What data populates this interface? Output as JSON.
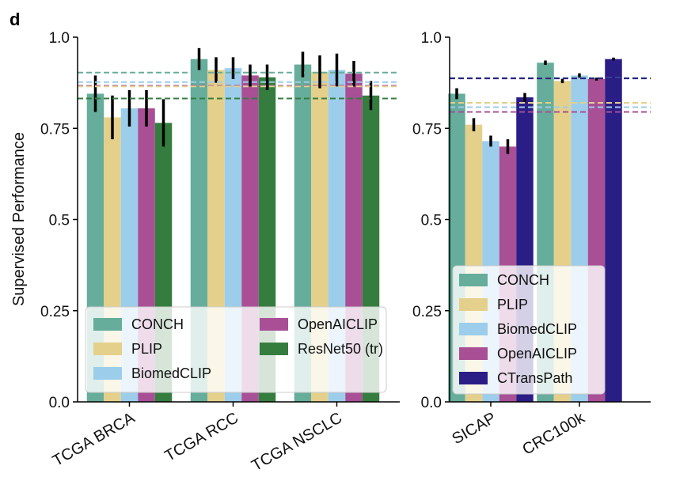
{
  "figure": {
    "panel_letter": "d",
    "ylabel": "Supervised Performance"
  },
  "colors": {
    "CONCH": "#66ad9b",
    "PLIP": "#e4d08a",
    "BiomedCLIP": "#9ccdeb",
    "OpenAICLIP": "#a84f96",
    "ResNet50 (tr)": "#357d3f",
    "CTransPath": "#2b1d86"
  },
  "chart_data": [
    {
      "type": "bar",
      "categories": [
        "TCGA BRCA",
        "TCGA RCC",
        "TCGA NSCLC"
      ],
      "ylim": [
        0.0,
        1.0
      ],
      "yticks": [
        "0.0",
        "0.25",
        "0.5",
        "0.75",
        "1.0"
      ],
      "ylabel": "Supervised Performance",
      "grid": false,
      "legend": {
        "placement": "bottom",
        "columns": 2,
        "order": [
          "CONCH",
          "OpenAICLIP",
          "PLIP",
          "ResNet50 (tr)",
          "BiomedCLIP"
        ]
      },
      "series": [
        {
          "name": "CONCH",
          "values": [
            0.845,
            0.94,
            0.925
          ],
          "errors": [
            0.05,
            0.03,
            0.035
          ]
        },
        {
          "name": "PLIP",
          "values": [
            0.78,
            0.91,
            0.905
          ],
          "errors": [
            0.06,
            0.035,
            0.045
          ]
        },
        {
          "name": "BiomedCLIP",
          "values": [
            0.805,
            0.915,
            0.91
          ],
          "errors": [
            0.05,
            0.03,
            0.045
          ]
        },
        {
          "name": "OpenAICLIP",
          "values": [
            0.805,
            0.895,
            0.9
          ],
          "errors": [
            0.05,
            0.03,
            0.035
          ]
        },
        {
          "name": "ResNet50 (tr)",
          "values": [
            0.765,
            0.89,
            0.84
          ],
          "errors": [
            0.065,
            0.035,
            0.04
          ]
        }
      ],
      "reference_lines": [
        {
          "series": "CONCH",
          "value": 0.903
        },
        {
          "series": "BiomedCLIP",
          "value": 0.877
        },
        {
          "series": "OpenAICLIP",
          "value": 0.867
        },
        {
          "series": "PLIP",
          "value": 0.865
        },
        {
          "series": "ResNet50 (tr)",
          "value": 0.832
        }
      ]
    },
    {
      "type": "bar",
      "categories": [
        "SICAP",
        "CRC100k"
      ],
      "ylim": [
        0.0,
        1.0
      ],
      "yticks": [
        "0.0",
        "0.25",
        "0.5",
        "0.75",
        "1.0"
      ],
      "grid": false,
      "legend": {
        "placement": "bottom",
        "columns": 1,
        "order": [
          "CONCH",
          "PLIP",
          "BiomedCLIP",
          "OpenAICLIP",
          "CTransPath"
        ]
      },
      "series": [
        {
          "name": "CONCH",
          "values": [
            0.845,
            0.93
          ],
          "errors": [
            0.015,
            0.006
          ]
        },
        {
          "name": "PLIP",
          "values": [
            0.76,
            0.88
          ],
          "errors": [
            0.018,
            0.006
          ]
        },
        {
          "name": "BiomedCLIP",
          "values": [
            0.715,
            0.895
          ],
          "errors": [
            0.015,
            0.006
          ]
        },
        {
          "name": "OpenAICLIP",
          "values": [
            0.7,
            0.885
          ],
          "errors": [
            0.02,
            0.004
          ]
        },
        {
          "name": "CTransPath",
          "values": [
            0.835,
            0.94
          ],
          "errors": [
            0.012,
            0.004
          ]
        }
      ],
      "reference_lines": [
        {
          "series": "CONCH",
          "value": 0.888
        },
        {
          "series": "CTransPath",
          "value": 0.887
        },
        {
          "series": "PLIP",
          "value": 0.82
        },
        {
          "series": "BiomedCLIP",
          "value": 0.808
        },
        {
          "series": "OpenAICLIP",
          "value": 0.795
        }
      ]
    }
  ]
}
